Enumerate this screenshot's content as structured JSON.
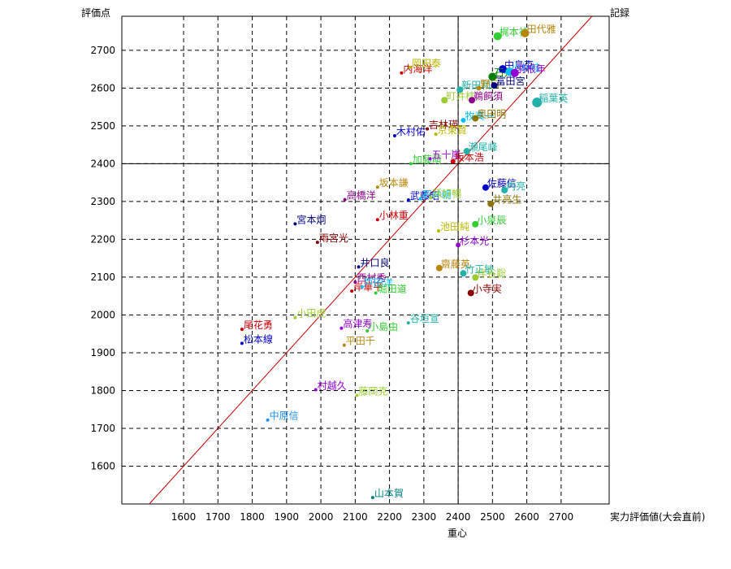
{
  "chart_data": {
    "type": "scatter",
    "title": "",
    "ylabel": "評価点",
    "xlabel": "実力評価値(大会直前)",
    "top_right_label": "記録",
    "bottom_label": "重心",
    "xlim": [
      1420,
      2840
    ],
    "ylim": [
      1500,
      2790
    ],
    "x_ticks": [
      1600,
      1700,
      1800,
      1900,
      2000,
      2100,
      2200,
      2300,
      2400,
      2500,
      2600,
      2700
    ],
    "y_ticks": [
      1600,
      1700,
      1800,
      1900,
      2000,
      2100,
      2200,
      2300,
      2400,
      2500,
      2600,
      2700
    ],
    "grid": true,
    "reference_line": {
      "x1": 1500,
      "y1": 1500,
      "x2": 2800,
      "y2": 2800,
      "color": "#cc0000"
    },
    "crosshair": {
      "x": 2400,
      "y": 2400
    },
    "points": [
      {
        "label": "山本賀",
        "x": 2151,
        "y": 1517,
        "color": "#008080",
        "size": 2
      },
      {
        "label": "中原信",
        "x": 1845,
        "y": 1722,
        "color": "#1e90ff",
        "size": 2
      },
      {
        "label": "村越久",
        "x": 1985,
        "y": 1802,
        "color": "#9400d3",
        "size": 2
      },
      {
        "label": "藤岡克",
        "x": 2105,
        "y": 1787,
        "color": "#9acd32",
        "size": 2
      },
      {
        "label": "平田千",
        "x": 2068,
        "y": 1920,
        "color": "#b8860b",
        "size": 2
      },
      {
        "label": "尾花勇",
        "x": 1770,
        "y": 1962,
        "color": "#cc0000",
        "size": 2
      },
      {
        "label": "松本線",
        "x": 1770,
        "y": 1925,
        "color": "#0000cd",
        "size": 2
      },
      {
        "label": "小田虎",
        "x": 1925,
        "y": 1993,
        "color": "#9acd32",
        "size": 2
      },
      {
        "label": "高津寿",
        "x": 2060,
        "y": 1965,
        "color": "#9400d3",
        "size": 2
      },
      {
        "label": "小島由",
        "x": 2135,
        "y": 1958,
        "color": "#32cd32",
        "size": 2
      },
      {
        "label": "谷垣宣",
        "x": 2255,
        "y": 1979,
        "color": "#20b2aa",
        "size": 2
      },
      {
        "label": "岸華平",
        "x": 2090,
        "y": 2063,
        "color": "#cc0000",
        "size": 2
      },
      {
        "label": "西村秀",
        "x": 2100,
        "y": 2087,
        "color": "#8b008b",
        "size": 2
      },
      {
        "label": "戸田洋",
        "x": 2120,
        "y": 2074,
        "color": "#00bfff",
        "size": 2
      },
      {
        "label": "堀田道",
        "x": 2160,
        "y": 2058,
        "color": "#32cd32",
        "size": 2
      },
      {
        "label": "井口良",
        "x": 2110,
        "y": 2127,
        "color": "#000080",
        "size": 2
      },
      {
        "label": "宮本炯",
        "x": 1925,
        "y": 2241,
        "color": "#000080",
        "size": 2
      },
      {
        "label": "雨宮光",
        "x": 1990,
        "y": 2192,
        "color": "#8b0000",
        "size": 2
      },
      {
        "label": "小林重",
        "x": 2165,
        "y": 2252,
        "color": "#cc0000",
        "size": 2
      },
      {
        "label": "高橋洋",
        "x": 2070,
        "y": 2305,
        "color": "#8b008b",
        "size": 2
      },
      {
        "label": "坂本謙",
        "x": 2165,
        "y": 2338,
        "color": "#b8860b",
        "size": 2
      },
      {
        "label": "武藤昭",
        "x": 2255,
        "y": 2304,
        "color": "#0000cd",
        "size": 2
      },
      {
        "label": "石井朝",
        "x": 2290,
        "y": 2307,
        "color": "#00bfff",
        "size": 2
      },
      {
        "label": "孫好暢",
        "x": 2320,
        "y": 2310,
        "color": "#9acd32",
        "size": 2
      },
      {
        "label": "池田純",
        "x": 2343,
        "y": 2222,
        "color": "#b8b800",
        "size": 2
      },
      {
        "label": "杉本光",
        "x": 2400,
        "y": 2185,
        "color": "#9400d3",
        "size": 3
      },
      {
        "label": "齋藤英",
        "x": 2345,
        "y": 2124,
        "color": "#b8860b",
        "size": 4
      },
      {
        "label": "竹正敏",
        "x": 2415,
        "y": 2110,
        "color": "#20b2aa",
        "size": 4
      },
      {
        "label": "伴谷聡",
        "x": 2450,
        "y": 2099,
        "color": "#9acd32",
        "size": 4
      },
      {
        "label": "小寺実",
        "x": 2437,
        "y": 2058,
        "color": "#8b0000",
        "size": 4
      },
      {
        "label": "小泉辰",
        "x": 2450,
        "y": 2240,
        "color": "#32cd32",
        "size": 4
      },
      {
        "label": "佐藤信",
        "x": 2480,
        "y": 2337,
        "color": "#0000cd",
        "size": 4
      },
      {
        "label": "内亮",
        "x": 2535,
        "y": 2330,
        "color": "#20b2aa",
        "size": 4
      },
      {
        "label": "井亮生",
        "x": 2495,
        "y": 2294,
        "color": "#8b7500",
        "size": 4
      },
      {
        "label": "加藤萌",
        "x": 2262,
        "y": 2400,
        "color": "#32cd32",
        "size": 2
      },
      {
        "label": "五十嵐",
        "x": 2318,
        "y": 2413,
        "color": "#9400d3",
        "size": 2
      },
      {
        "label": "坂本浩",
        "x": 2385,
        "y": 2406,
        "color": "#cc0000",
        "size": 3
      },
      {
        "label": "瀬尾峰",
        "x": 2425,
        "y": 2433,
        "color": "#20b2aa",
        "size": 4
      },
      {
        "label": "木村佑",
        "x": 2215,
        "y": 2474,
        "color": "#0000cd",
        "size": 2
      },
      {
        "label": "吉林瑛",
        "x": 2310,
        "y": 2492,
        "color": "#8b0000",
        "size": 2
      },
      {
        "label": "京東賢",
        "x": 2335,
        "y": 2478,
        "color": "#b8b800",
        "size": 2
      },
      {
        "label": "牧真一",
        "x": 2415,
        "y": 2515,
        "color": "#00bfff",
        "size": 3
      },
      {
        "label": "奥田明",
        "x": 2450,
        "y": 2520,
        "color": "#8b7500",
        "size": 4
      },
      {
        "label": "町井桂",
        "x": 2360,
        "y": 2568,
        "color": "#9acd32",
        "size": 4
      },
      {
        "label": "鵜飼須",
        "x": 2440,
        "y": 2568,
        "color": "#8b008b",
        "size": 4
      },
      {
        "label": "稲葉英",
        "x": 2630,
        "y": 2562,
        "color": "#20b2aa",
        "size": 6
      },
      {
        "label": "新田和",
        "x": 2405,
        "y": 2596,
        "color": "#20b2aa",
        "size": 4
      },
      {
        "label": "野口",
        "x": 2460,
        "y": 2600,
        "color": "#b8860b",
        "size": 3
      },
      {
        "label": "富田宮",
        "x": 2505,
        "y": 2607,
        "color": "#000080",
        "size": 4
      },
      {
        "label": "内海洋",
        "x": 2235,
        "y": 2640,
        "color": "#cc0000",
        "size": 2
      },
      {
        "label": "岡田泰",
        "x": 2260,
        "y": 2655,
        "color": "#b8b800",
        "size": 2
      },
      {
        "label": "中島克",
        "x": 2530,
        "y": 2650,
        "color": "#0000cd",
        "size": 5
      },
      {
        "label": "石井",
        "x": 2500,
        "y": 2630,
        "color": "#008000",
        "size": 5
      },
      {
        "label": "小林桂",
        "x": 2550,
        "y": 2643,
        "color": "#00bfff",
        "size": 5
      },
      {
        "label": "羽根年",
        "x": 2565,
        "y": 2640,
        "color": "#9400d3",
        "size": 5
      },
      {
        "label": "梶本祐",
        "x": 2515,
        "y": 2737,
        "color": "#32cd32",
        "size": 5
      },
      {
        "label": "田代雅",
        "x": 2595,
        "y": 2745,
        "color": "#b8860b",
        "size": 5
      }
    ]
  }
}
